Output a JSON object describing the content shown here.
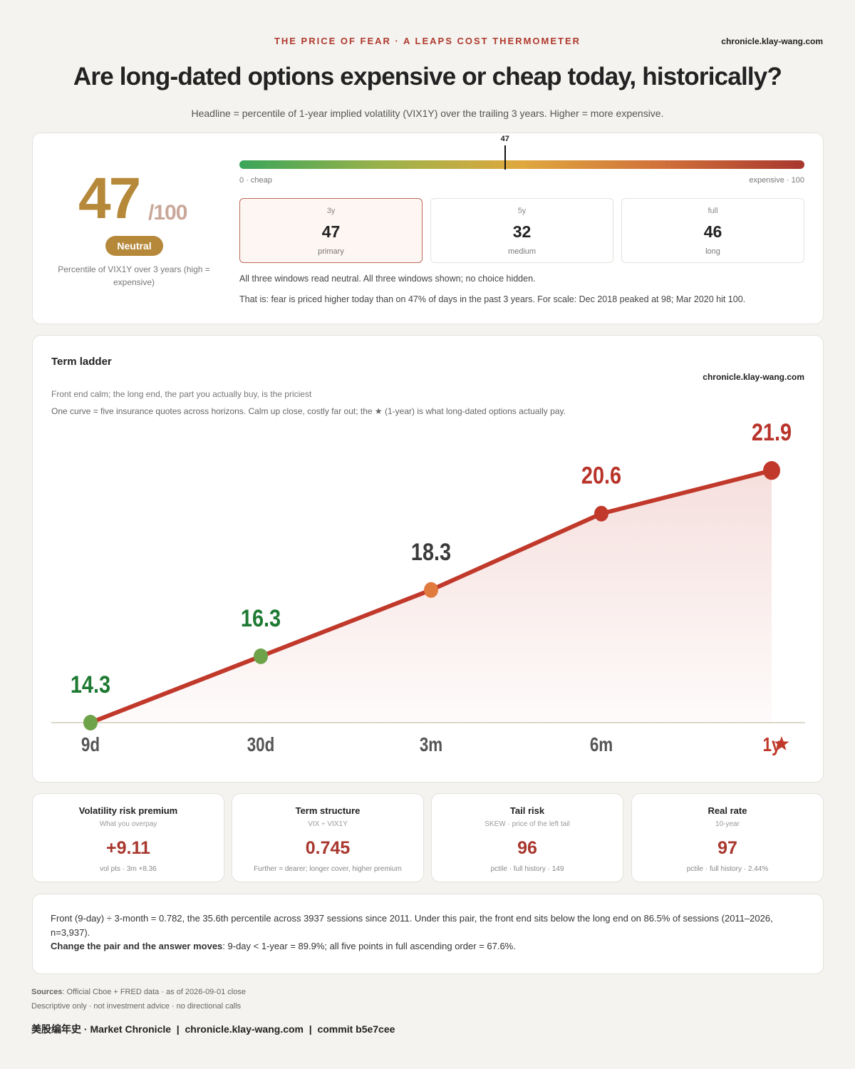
{
  "header": {
    "kicker": "THE PRICE OF FEAR · A LEAPS COST THERMOMETER",
    "site": "chronicle.klay-wang.com",
    "title": "Are long-dated options expensive or cheap today, historically?",
    "subtitle": "Headline = percentile of 1-year implied volatility (VIX1Y) over the trailing 3 years. Higher = more expensive."
  },
  "gauge": {
    "value": 47,
    "lim": [
      0,
      100
    ],
    "max_label": "/100",
    "badge": "Neutral",
    "caption": "Percentile of VIX1Y over 3 years (high = expensive)",
    "low_label": "0 · cheap",
    "high_label": "expensive · 100"
  },
  "windows": [
    {
      "label": "3y",
      "value": 47,
      "note": "primary"
    },
    {
      "label": "5y",
      "value": 32,
      "note": "medium"
    },
    {
      "label": "full",
      "value": 46,
      "note": "long"
    }
  ],
  "gauge_notes": [
    "All three windows read neutral. All three windows shown; no choice hidden.",
    "That is: fear is priced higher today than on 47% of days in the past 3 years. For scale: Dec 2018 peaked at 98; Mar 2020 hit 100."
  ],
  "chart_data": {
    "type": "line",
    "title": "Term ladder",
    "site": "chronicle.klay-wang.com",
    "subtitle": "Front end calm; the long end, the part you actually buy, is the priciest",
    "caption": "One curve = five insurance quotes across horizons. Calm up close, costly far out; the ★ (1-year) is what long-dated options actually pay.",
    "categories": [
      "9d",
      "30d",
      "3m",
      "6m",
      "1y"
    ],
    "values": [
      14.3,
      16.3,
      18.3,
      20.6,
      21.9
    ],
    "color": "#c0392b",
    "point_colors": [
      "#6fa34a",
      "#6fa34a",
      "#e07a3f",
      "#c0392b",
      "#c0392b"
    ],
    "label_colors": [
      "#1e7a32",
      "#1e7a32",
      "#3a3a3a",
      "#b8332a",
      "#b8332a"
    ],
    "ylim": [
      14.3,
      23
    ]
  },
  "metrics": [
    {
      "title": "Volatility risk premium",
      "sub": "What you overpay",
      "value": "+9.11",
      "note": "vol pts · 3m +8.36"
    },
    {
      "title": "Term structure",
      "sub": "VIX ÷ VIX1Y",
      "value": "0.745",
      "note": "Further = dearer; longer cover, higher premium"
    },
    {
      "title": "Tail risk",
      "sub": "SKEW · price of the left tail",
      "value": "96",
      "note": "pctile · full history · 149"
    },
    {
      "title": "Real rate",
      "sub": "10-year",
      "value": "97",
      "note": "pctile · full history · 2.44%"
    }
  ],
  "summary": {
    "text": "Front (9-day) ÷ 3-month = 0.782, the 35.6th percentile across 3937 sessions since 2011. Under this pair, the front end sits below the long end on 86.5% of sessions (2011–2026, n=3,937).",
    "bold": "Change the pair and the answer moves",
    "rest": ": 9-day < 1-year = 89.9%; all five points in full ascending order = 67.6%."
  },
  "footer": {
    "sources_label": "Sources",
    "sources": ": Official Cboe + FRED data · as of 2026-09-01 close",
    "disclaimer": "Descriptive only · not investment advice · no directional calls",
    "line": "美股编年史 · Market Chronicle  |  chronicle.klay-wang.com  |  commit b5e7cee"
  }
}
